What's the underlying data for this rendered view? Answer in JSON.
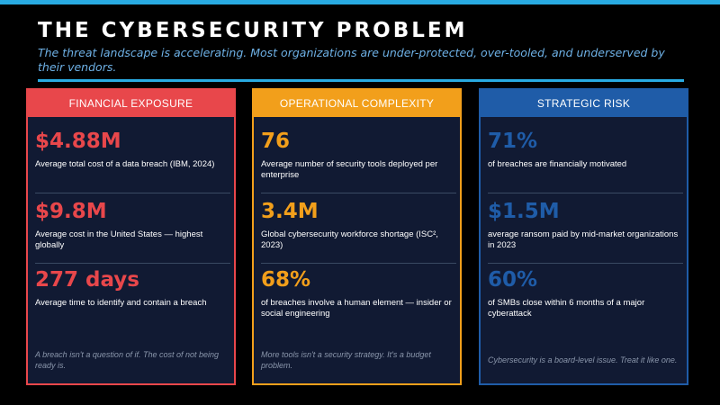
{
  "title": "THE CYBERSECURITY PROBLEM",
  "subtitle": "The threat landscape is accelerating. Most organizations are under-protected, over-tooled, and underserved by their vendors.",
  "colors": {
    "accent_rule": "#29abe2",
    "financial": "#e8474b",
    "operational": "#f29f1b",
    "strategic": "#1f5ca8"
  },
  "cards": [
    {
      "header": "FINANCIAL EXPOSURE",
      "stats": [
        {
          "value": "$4.88M",
          "desc": "Average total cost of a data breach (IBM, 2024)"
        },
        {
          "value": "$9.8M",
          "desc": "Average cost in the United States — highest globally"
        },
        {
          "value": "277 days",
          "desc": "Average time to identify and contain a breach"
        }
      ],
      "footer": "A breach isn't a question of if. The cost of not being ready is."
    },
    {
      "header": "OPERATIONAL COMPLEXITY",
      "stats": [
        {
          "value": "76",
          "desc": "Average number of security tools deployed per enterprise"
        },
        {
          "value": "3.4M",
          "desc": "Global cybersecurity workforce shortage (ISC², 2023)"
        },
        {
          "value": "68%",
          "desc": "of breaches involve a human element — insider or social engineering"
        }
      ],
      "footer": "More tools isn't a security strategy. It's a budget problem."
    },
    {
      "header": "STRATEGIC RISK",
      "stats": [
        {
          "value": "71%",
          "desc": "of breaches are financially motivated"
        },
        {
          "value": "$1.5M",
          "desc": "average ransom paid by mid-market organizations in 2023"
        },
        {
          "value": "60%",
          "desc": "of SMBs close within 6 months of a major cyberattack"
        }
      ],
      "footer": "Cybersecurity is a board-level issue. Treat it like one."
    }
  ]
}
